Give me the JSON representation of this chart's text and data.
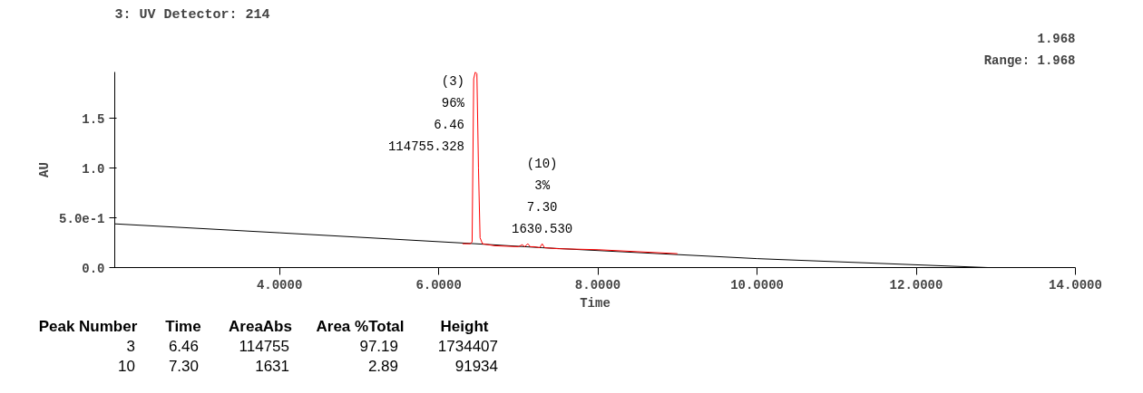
{
  "chart_data": {
    "type": "line",
    "title": "3: UV Detector: 214",
    "xlabel": "Time",
    "ylabel": "AU",
    "xlim": [
      1.93,
      14.0
    ],
    "ylim": [
      0,
      1.968
    ],
    "xticks": [
      {
        "value": 4,
        "label": "4.0000"
      },
      {
        "value": 6,
        "label": "6.0000"
      },
      {
        "value": 8,
        "label": "8.0000"
      },
      {
        "value": 10,
        "label": "10.0000"
      },
      {
        "value": 12,
        "label": "12.0000"
      },
      {
        "value": 14,
        "label": "14.0000"
      }
    ],
    "yticks": [
      {
        "value": 0,
        "label": "0.0"
      },
      {
        "value": 0.5,
        "label": "5.0e-1"
      },
      {
        "value": 1.0,
        "label": "1.0"
      },
      {
        "value": 1.5,
        "label": "1.5"
      }
    ],
    "grid": false,
    "marker": "none",
    "line_style": "solid",
    "series": [
      {
        "color": "#000000",
        "x": [
          1.93,
          4.0,
          6.46,
          7.3,
          10.0,
          12.9,
          14.0
        ],
        "values": [
          0.44,
          0.35,
          0.24,
          0.2,
          0.09,
          0.0,
          0.0
        ]
      },
      {
        "color": "#ff0000",
        "x": [
          6.3,
          6.4,
          6.42,
          6.44,
          6.46,
          6.48,
          6.5,
          6.52,
          6.55,
          6.7,
          7.0,
          7.05,
          7.08,
          7.12,
          7.15,
          7.2,
          7.27,
          7.3,
          7.33,
          7.5,
          8.0,
          8.5,
          9.0
        ],
        "values": [
          0.24,
          0.24,
          0.26,
          1.9,
          1.968,
          1.95,
          1.0,
          0.3,
          0.24,
          0.22,
          0.21,
          0.23,
          0.21,
          0.24,
          0.21,
          0.21,
          0.2,
          0.24,
          0.2,
          0.19,
          0.18,
          0.16,
          0.14
        ]
      }
    ],
    "annotations": [
      {
        "text": "(3)\n96%\n6.46\n114755.328",
        "x": 6.46,
        "y": 1.968
      },
      {
        "text": "(10)\n3%\n7.30\n1630.530",
        "x": 7.3,
        "y": 0.24
      },
      "1.968",
      "Range: 1.968",
      "Peak Number",
      "Time",
      "AreaAbs",
      "Area %Total",
      "Height",
      "3",
      "6.46",
      "114755",
      "97.19",
      "1734407",
      "10",
      "7.30",
      "1631",
      "2.89",
      "91934"
    ]
  }
}
